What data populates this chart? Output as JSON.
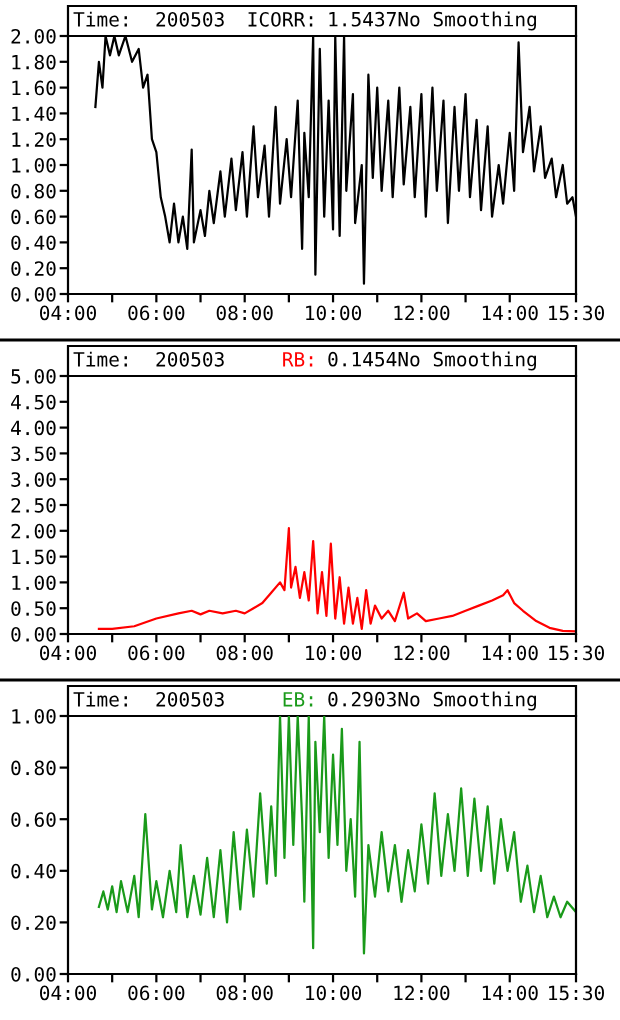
{
  "chart_data": [
    {
      "type": "line",
      "title": "Time:  200503",
      "annotations": [
        "1.5437No Smoothing"
      ],
      "xlim": [
        4,
        15.5
      ],
      "xticks": [
        {
          "value": 4,
          "label": "04:00"
        },
        {
          "value": 5,
          "label": null
        },
        {
          "value": 6,
          "label": "06:00"
        },
        {
          "value": 7,
          "label": null
        },
        {
          "value": 8,
          "label": "08:00"
        },
        {
          "value": 9,
          "label": null
        },
        {
          "value": 10,
          "label": "10:00"
        },
        {
          "value": 11,
          "label": null
        },
        {
          "value": 12,
          "label": "12:00"
        },
        {
          "value": 13,
          "label": null
        },
        {
          "value": 14,
          "label": "14:00"
        },
        {
          "value": 15.5,
          "label": "15:30"
        }
      ],
      "ylim": [
        0,
        2
      ],
      "yticks": [
        {
          "value": 0,
          "label": "0.00"
        },
        {
          "value": 0.2,
          "label": "0.20"
        },
        {
          "value": 0.4,
          "label": "0.40"
        },
        {
          "value": 0.6,
          "label": "0.60"
        },
        {
          "value": 0.8,
          "label": "0.80"
        },
        {
          "value": 1,
          "label": "1.00"
        },
        {
          "value": 1.2,
          "label": "1.20"
        },
        {
          "value": 1.4,
          "label": "1.40"
        },
        {
          "value": 1.6,
          "label": "1.60"
        },
        {
          "value": 1.8,
          "label": "1.80"
        },
        {
          "value": 2,
          "label": "2.00"
        }
      ],
      "grid": false,
      "legend": false,
      "series": [
        {
          "name": "ICORR:",
          "color": "#000000",
          "x": [
            4.62,
            4.7,
            4.78,
            4.85,
            4.95,
            5.05,
            5.15,
            5.3,
            5.45,
            5.6,
            5.7,
            5.8,
            5.9,
            6.0,
            6.1,
            6.2,
            6.3,
            6.4,
            6.5,
            6.6,
            6.7,
            6.8,
            6.85,
            7.0,
            7.1,
            7.2,
            7.3,
            7.45,
            7.55,
            7.7,
            7.8,
            7.95,
            8.05,
            8.2,
            8.3,
            8.45,
            8.55,
            8.7,
            8.8,
            8.95,
            9.05,
            9.2,
            9.3,
            9.35,
            9.45,
            9.55,
            9.6,
            9.7,
            9.8,
            9.9,
            10.0,
            10.05,
            10.15,
            10.25,
            10.3,
            10.45,
            10.5,
            10.65,
            10.7,
            10.8,
            10.9,
            11.0,
            11.1,
            11.25,
            11.35,
            11.5,
            11.6,
            11.75,
            11.85,
            12.0,
            12.1,
            12.25,
            12.35,
            12.5,
            12.6,
            12.75,
            12.85,
            13.0,
            13.1,
            13.25,
            13.35,
            13.5,
            13.6,
            13.75,
            13.85,
            14.0,
            14.1,
            14.2,
            14.3,
            14.45,
            14.55,
            14.7,
            14.8,
            14.95,
            15.05,
            15.2,
            15.3,
            15.42,
            15.5
          ],
          "values": [
            1.45,
            1.8,
            1.6,
            2.0,
            1.85,
            2.0,
            1.85,
            2.0,
            1.8,
            1.9,
            1.6,
            1.7,
            1.2,
            1.1,
            0.75,
            0.6,
            0.4,
            0.7,
            0.4,
            0.6,
            0.35,
            1.12,
            0.4,
            0.65,
            0.45,
            0.8,
            0.55,
            0.95,
            0.6,
            1.05,
            0.65,
            1.1,
            0.6,
            1.3,
            0.75,
            1.15,
            0.6,
            1.45,
            0.7,
            1.2,
            0.75,
            1.5,
            0.35,
            1.25,
            0.75,
            2.0,
            0.15,
            1.9,
            0.6,
            1.5,
            0.5,
            2.0,
            0.45,
            2.0,
            0.8,
            1.55,
            0.55,
            1.0,
            0.08,
            1.7,
            0.9,
            1.6,
            0.8,
            1.5,
            0.75,
            1.6,
            0.85,
            1.45,
            0.75,
            1.55,
            0.6,
            1.6,
            0.8,
            1.5,
            0.55,
            1.45,
            0.8,
            1.55,
            0.75,
            1.35,
            0.65,
            1.3,
            0.6,
            1.0,
            0.7,
            1.25,
            0.8,
            1.95,
            1.1,
            1.45,
            0.95,
            1.3,
            0.9,
            1.05,
            0.75,
            1.0,
            0.7,
            0.75,
            0.6
          ]
        }
      ]
    },
    {
      "type": "line",
      "title": "Time:  200503",
      "annotations": [
        "0.1454No Smoothing"
      ],
      "xlim": [
        4,
        15.5
      ],
      "xticks": [
        {
          "value": 4,
          "label": "04:00"
        },
        {
          "value": 5,
          "label": null
        },
        {
          "value": 6,
          "label": "06:00"
        },
        {
          "value": 7,
          "label": null
        },
        {
          "value": 8,
          "label": "08:00"
        },
        {
          "value": 9,
          "label": null
        },
        {
          "value": 10,
          "label": "10:00"
        },
        {
          "value": 11,
          "label": null
        },
        {
          "value": 12,
          "label": "12:00"
        },
        {
          "value": 13,
          "label": null
        },
        {
          "value": 14,
          "label": "14:00"
        },
        {
          "value": 15.5,
          "label": "15:30"
        }
      ],
      "ylim": [
        0,
        5
      ],
      "yticks": [
        {
          "value": 0,
          "label": "0.00"
        },
        {
          "value": 0.5,
          "label": "0.50"
        },
        {
          "value": 1,
          "label": "1.00"
        },
        {
          "value": 1.5,
          "label": "1.50"
        },
        {
          "value": 2,
          "label": "2.00"
        },
        {
          "value": 2.5,
          "label": "2.50"
        },
        {
          "value": 3,
          "label": "3.00"
        },
        {
          "value": 3.5,
          "label": "3.50"
        },
        {
          "value": 4,
          "label": "4.00"
        },
        {
          "value": 4.5,
          "label": "4.50"
        },
        {
          "value": 5,
          "label": "5.00"
        }
      ],
      "grid": false,
      "legend": false,
      "series": [
        {
          "name": "RB:",
          "color": "#ff0000",
          "x": [
            4.7,
            5.0,
            5.5,
            6.0,
            6.5,
            6.8,
            7.0,
            7.2,
            7.5,
            7.8,
            8.0,
            8.2,
            8.4,
            8.6,
            8.8,
            8.9,
            9.0,
            9.05,
            9.15,
            9.25,
            9.35,
            9.45,
            9.55,
            9.65,
            9.75,
            9.85,
            9.95,
            10.05,
            10.15,
            10.25,
            10.35,
            10.45,
            10.55,
            10.65,
            10.75,
            10.85,
            10.95,
            11.1,
            11.25,
            11.4,
            11.6,
            11.7,
            11.9,
            12.1,
            12.4,
            12.7,
            13.0,
            13.3,
            13.6,
            13.85,
            13.95,
            14.1,
            14.3,
            14.6,
            14.9,
            15.2,
            15.5
          ],
          "values": [
            0.1,
            0.1,
            0.15,
            0.3,
            0.4,
            0.45,
            0.38,
            0.45,
            0.4,
            0.45,
            0.4,
            0.5,
            0.6,
            0.8,
            1.0,
            0.85,
            2.05,
            0.9,
            1.3,
            0.7,
            1.2,
            0.65,
            1.8,
            0.4,
            1.2,
            0.35,
            1.75,
            0.3,
            1.1,
            0.2,
            0.9,
            0.2,
            0.7,
            0.1,
            0.85,
            0.2,
            0.55,
            0.3,
            0.45,
            0.25,
            0.8,
            0.3,
            0.4,
            0.25,
            0.3,
            0.35,
            0.45,
            0.55,
            0.65,
            0.75,
            0.85,
            0.6,
            0.45,
            0.25,
            0.12,
            0.06,
            0.05
          ]
        }
      ]
    },
    {
      "type": "line",
      "title": "Time:  200503",
      "annotations": [
        "0.2903No Smoothing"
      ],
      "xlim": [
        4,
        15.5
      ],
      "xticks": [
        {
          "value": 4,
          "label": "04:00"
        },
        {
          "value": 5,
          "label": null
        },
        {
          "value": 6,
          "label": "06:00"
        },
        {
          "value": 7,
          "label": null
        },
        {
          "value": 8,
          "label": "08:00"
        },
        {
          "value": 9,
          "label": null
        },
        {
          "value": 10,
          "label": "10:00"
        },
        {
          "value": 11,
          "label": null
        },
        {
          "value": 12,
          "label": "12:00"
        },
        {
          "value": 13,
          "label": null
        },
        {
          "value": 14,
          "label": "14:00"
        },
        {
          "value": 15.5,
          "label": "15:30"
        }
      ],
      "ylim": [
        0,
        1
      ],
      "yticks": [
        {
          "value": 0,
          "label": "0.00"
        },
        {
          "value": 0.2,
          "label": "0.20"
        },
        {
          "value": 0.4,
          "label": "0.40"
        },
        {
          "value": 0.6,
          "label": "0.60"
        },
        {
          "value": 0.8,
          "label": "0.80"
        },
        {
          "value": 1,
          "label": "1.00"
        }
      ],
      "grid": false,
      "legend": false,
      "series": [
        {
          "name": "EB:",
          "color": "#1a9a1a",
          "x": [
            4.7,
            4.8,
            4.9,
            5.0,
            5.1,
            5.2,
            5.35,
            5.5,
            5.6,
            5.75,
            5.9,
            6.0,
            6.15,
            6.3,
            6.45,
            6.55,
            6.7,
            6.85,
            7.0,
            7.15,
            7.3,
            7.45,
            7.6,
            7.75,
            7.9,
            8.05,
            8.2,
            8.35,
            8.5,
            8.6,
            8.7,
            8.8,
            8.9,
            9.0,
            9.1,
            9.2,
            9.3,
            9.35,
            9.45,
            9.55,
            9.6,
            9.7,
            9.8,
            9.9,
            10.0,
            10.1,
            10.2,
            10.3,
            10.4,
            10.5,
            10.6,
            10.7,
            10.8,
            10.95,
            11.1,
            11.25,
            11.4,
            11.55,
            11.7,
            11.85,
            12.0,
            12.15,
            12.3,
            12.45,
            12.6,
            12.75,
            12.9,
            13.05,
            13.2,
            13.35,
            13.5,
            13.65,
            13.8,
            13.95,
            14.1,
            14.25,
            14.4,
            14.55,
            14.7,
            14.85,
            15.0,
            15.15,
            15.3,
            15.5
          ],
          "values": [
            0.26,
            0.32,
            0.25,
            0.34,
            0.24,
            0.36,
            0.24,
            0.38,
            0.22,
            0.62,
            0.25,
            0.36,
            0.22,
            0.4,
            0.24,
            0.5,
            0.22,
            0.38,
            0.23,
            0.45,
            0.22,
            0.48,
            0.2,
            0.55,
            0.25,
            0.56,
            0.3,
            0.7,
            0.35,
            0.65,
            0.38,
            1.0,
            0.45,
            1.0,
            0.5,
            1.0,
            0.6,
            0.28,
            1.0,
            0.1,
            0.9,
            0.55,
            1.0,
            0.45,
            0.85,
            0.5,
            0.95,
            0.4,
            0.6,
            0.3,
            0.9,
            0.08,
            0.5,
            0.3,
            0.55,
            0.32,
            0.5,
            0.28,
            0.48,
            0.32,
            0.58,
            0.35,
            0.7,
            0.38,
            0.62,
            0.4,
            0.72,
            0.38,
            0.68,
            0.4,
            0.65,
            0.35,
            0.6,
            0.4,
            0.55,
            0.28,
            0.42,
            0.24,
            0.38,
            0.22,
            0.3,
            0.22,
            0.28,
            0.24
          ]
        }
      ]
    }
  ]
}
